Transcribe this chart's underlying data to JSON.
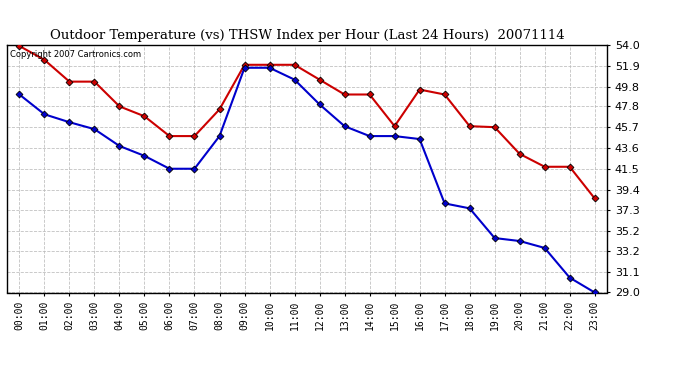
{
  "title": "Outdoor Temperature (vs) THSW Index per Hour (Last 24 Hours)  20071114",
  "copyright_text": "Copyright 2007 Cartronics.com",
  "hours": [
    "00:00",
    "01:00",
    "02:00",
    "03:00",
    "04:00",
    "05:00",
    "06:00",
    "07:00",
    "08:00",
    "09:00",
    "10:00",
    "11:00",
    "12:00",
    "13:00",
    "14:00",
    "15:00",
    "16:00",
    "17:00",
    "18:00",
    "19:00",
    "20:00",
    "21:00",
    "22:00",
    "23:00"
  ],
  "temp": [
    49.0,
    47.0,
    46.2,
    45.5,
    43.8,
    42.8,
    41.5,
    41.5,
    44.8,
    51.7,
    51.7,
    50.5,
    48.0,
    45.8,
    44.8,
    44.8,
    44.5,
    38.0,
    37.5,
    34.5,
    34.2,
    33.5,
    30.5,
    29.0
  ],
  "thsw": [
    53.9,
    52.5,
    50.3,
    50.3,
    47.8,
    46.8,
    44.8,
    44.8,
    47.5,
    52.0,
    52.0,
    52.0,
    50.5,
    49.0,
    49.0,
    45.8,
    49.5,
    49.0,
    45.8,
    45.7,
    43.0,
    41.7,
    41.7,
    38.5
  ],
  "temp_color": "#0000cc",
  "thsw_color": "#cc0000",
  "bg_color": "#ffffff",
  "plot_bg_color": "#ffffff",
  "grid_color": "#bbbbbb",
  "ylim_min": 29.0,
  "ylim_max": 54.0,
  "yticks": [
    29.0,
    31.1,
    33.2,
    35.2,
    37.3,
    39.4,
    41.5,
    43.6,
    45.7,
    47.8,
    49.8,
    51.9,
    54.0
  ],
  "linewidth": 1.5
}
